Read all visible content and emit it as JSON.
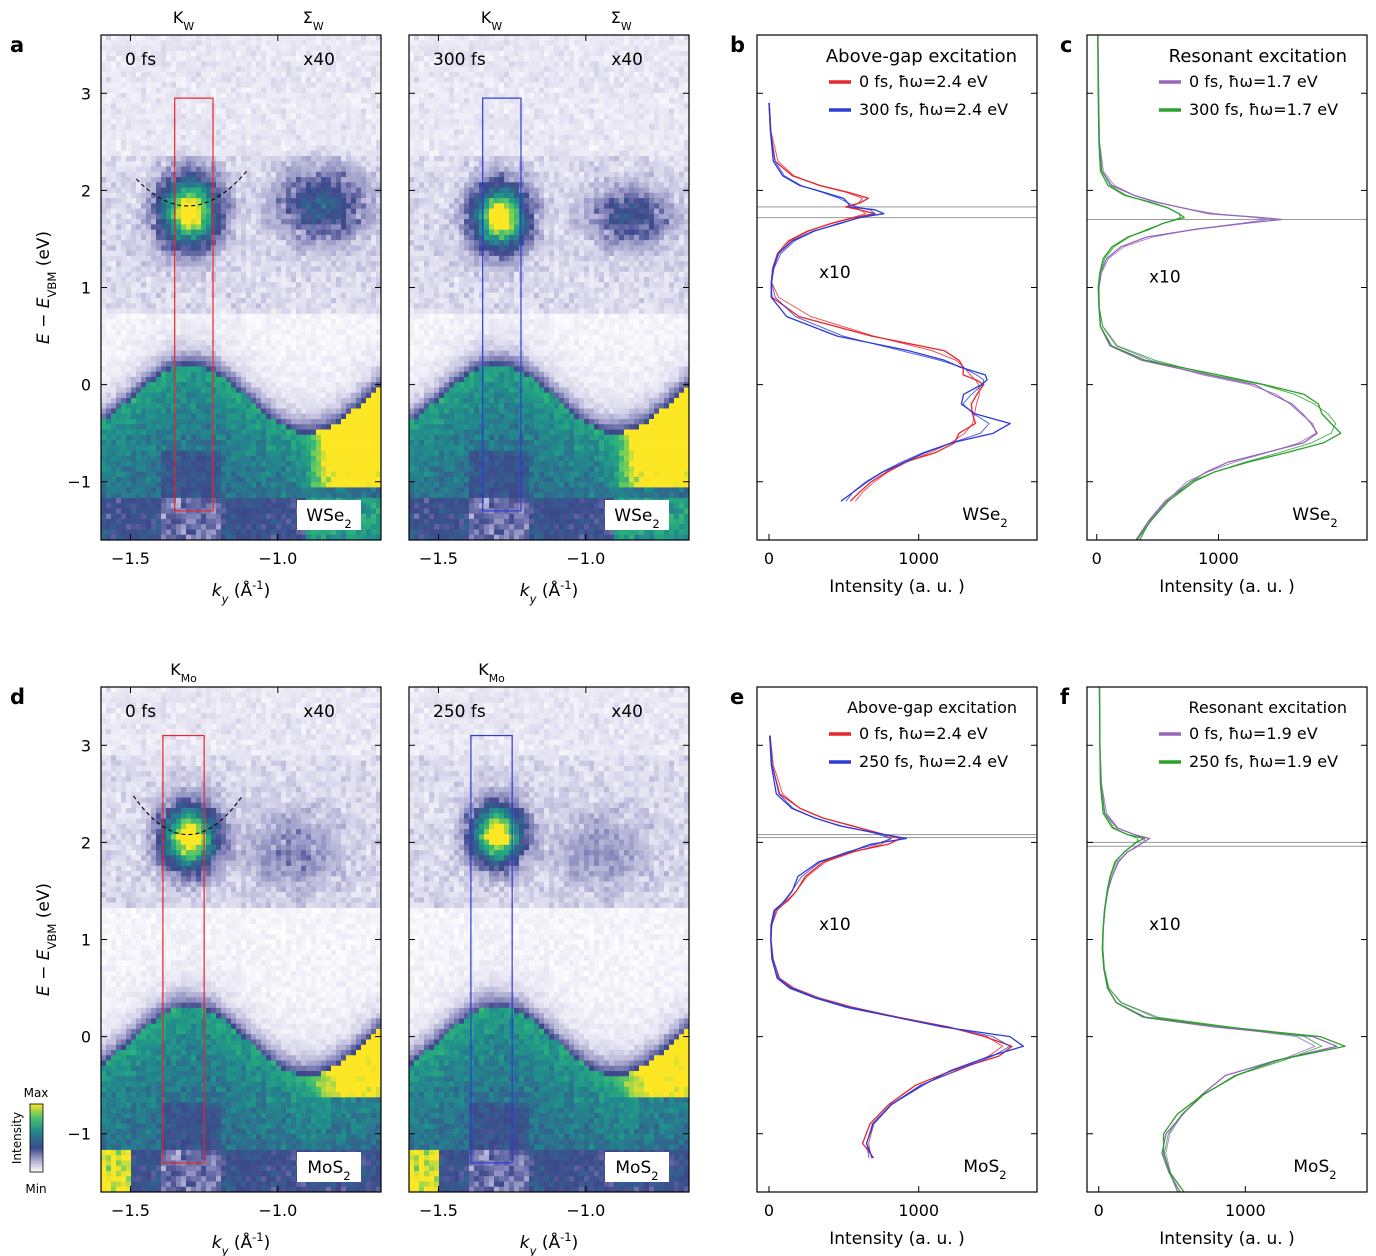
{
  "panel_letters": [
    "a",
    "b",
    "c",
    "d",
    "e",
    "f"
  ],
  "colorbar": {
    "label": "Intensity",
    "max_label": "Max",
    "min_label": "Min"
  },
  "chart_data": [
    {
      "panel": "a-left",
      "type": "heatmap",
      "material": "WSe2",
      "time_label": "0 fs",
      "scale_label": "x40",
      "top_labels": [
        {
          "base": "K",
          "sub": "W",
          "k": -1.32
        },
        {
          "base": "Σ",
          "sub": "W",
          "k": -0.88
        }
      ],
      "xlabel": "k",
      "xlabel_sub": "y",
      "xunit": "(Å",
      "xunit_sup": "-1",
      "xunit_end": ")",
      "ylabel_parts": [
        "E − E",
        "VBM",
        " (eV)"
      ],
      "xlim": [
        -1.6,
        -0.65
      ],
      "ylim": [
        -1.6,
        3.6
      ],
      "xticks": [
        -1.5,
        -1.0
      ],
      "xtick_labels": [
        "−1.5",
        "−1.0"
      ],
      "yticks": [
        -1,
        0,
        1,
        2,
        3
      ],
      "ytick_labels": [
        "−1",
        "0",
        "1",
        "2",
        "3"
      ],
      "box": {
        "k": [
          -1.35,
          -1.22
        ],
        "E": [
          -1.3,
          2.95
        ],
        "color": "#e8262b"
      },
      "parabola": {
        "k0": -1.305,
        "E0": 1.84,
        "k_range": [
          -1.48,
          -1.1
        ],
        "E_edge": 2.22
      },
      "cb_edge": 0.75,
      "features": [
        {
          "k": -1.3,
          "E": 1.78,
          "width": 0.09,
          "height": 0.32,
          "strength": 1.0
        },
        {
          "k": -0.85,
          "E": 1.85,
          "width": 0.13,
          "height": 0.33,
          "strength": 0.36
        }
      ],
      "vb": {
        "k_peak": -1.3,
        "E_top": 0.2,
        "E_low": -0.5,
        "period": 0.58
      }
    },
    {
      "panel": "a-right",
      "type": "heatmap",
      "material": "WSe2",
      "time_label": "300 fs",
      "scale_label": "x40",
      "top_labels": [
        {
          "base": "K",
          "sub": "W",
          "k": -1.32
        },
        {
          "base": "Σ",
          "sub": "W",
          "k": -0.88
        }
      ],
      "xlabel": "k",
      "xlabel_sub": "y",
      "xunit": "(Å",
      "xunit_sup": "-1",
      "xunit_end": ")",
      "xlim": [
        -1.6,
        -0.65
      ],
      "ylim": [
        -1.6,
        3.6
      ],
      "xticks": [
        -1.5,
        -1.0
      ],
      "xtick_labels": [
        "−1.5",
        "−1.0"
      ],
      "box": {
        "k": [
          -1.35,
          -1.22
        ],
        "E": [
          -1.3,
          2.95
        ],
        "color": "#2b3bdc"
      },
      "cb_edge": 0.75,
      "features": [
        {
          "k": -1.29,
          "E": 1.72,
          "width": 0.085,
          "height": 0.3,
          "strength": 1.0
        },
        {
          "k": -0.85,
          "E": 1.73,
          "width": 0.12,
          "height": 0.27,
          "strength": 0.3
        }
      ],
      "vb": {
        "k_peak": -1.3,
        "E_top": 0.2,
        "E_low": -0.5,
        "period": 0.58
      }
    },
    {
      "panel": "b",
      "type": "line",
      "material": "WSe2",
      "title": "Above-gap excitation",
      "scale_label": "x10",
      "xlabel": "Intensity (a. u. )",
      "xlim": [
        -80,
        1790
      ],
      "ylim": [
        -1.6,
        3.6
      ],
      "xticks": [
        0,
        1000
      ],
      "xtick_labels": [
        "0",
        "1000"
      ],
      "hlines": [
        1.83,
        1.72
      ],
      "series": [
        {
          "name": "0 fs, ħω=2.4 eV",
          "color": "#e8262b",
          "E": [
            2.9,
            2.6,
            2.3,
            2.15,
            2.05,
            1.98,
            1.92,
            1.87,
            1.83,
            1.8,
            1.76,
            1.72,
            1.66,
            1.58,
            1.48,
            1.35,
            1.2,
            1.05,
            0.9,
            0.7,
            0.5,
            0.35,
            0.25,
            0.18,
            0.1,
            0.05,
            0.0,
            -0.1,
            -0.2,
            -0.3,
            -0.4,
            -0.5,
            -0.6,
            -0.7,
            -0.8,
            -0.9,
            -1.0,
            -1.1,
            -1.2
          ],
          "I": [
            0,
            10,
            40,
            150,
            330,
            520,
            690,
            600,
            500,
            620,
            700,
            560,
            410,
            260,
            130,
            55,
            25,
            15,
            20,
            200,
            700,
            1200,
            1250,
            1300,
            1350,
            1380,
            1400,
            1420,
            1380,
            1360,
            1390,
            1300,
            1240,
            1080,
            900,
            790,
            700,
            630,
            560
          ]
        },
        {
          "name": "300 fs, ħω=2.4 eV",
          "color": "#2b3bdc",
          "E": [
            2.9,
            2.6,
            2.3,
            2.15,
            2.05,
            1.98,
            1.92,
            1.87,
            1.83,
            1.8,
            1.76,
            1.72,
            1.66,
            1.58,
            1.48,
            1.35,
            1.2,
            1.05,
            0.9,
            0.7,
            0.5,
            0.35,
            0.25,
            0.18,
            0.1,
            0.05,
            0.0,
            -0.1,
            -0.2,
            -0.3,
            -0.4,
            -0.5,
            -0.6,
            -0.7,
            -0.8,
            -0.9,
            -1.0,
            -1.1,
            -1.2
          ],
          "I": [
            0,
            10,
            30,
            90,
            200,
            370,
            480,
            540,
            560,
            690,
            760,
            620,
            460,
            300,
            160,
            65,
            28,
            15,
            15,
            120,
            450,
            960,
            1150,
            1300,
            1400,
            1440,
            1460,
            1350,
            1250,
            1330,
            1550,
            1450,
            1200,
            1020,
            880,
            750,
            640,
            560,
            500
          ]
        }
      ]
    },
    {
      "panel": "c",
      "type": "line",
      "material": "WSe2",
      "title": "Resonant excitation",
      "scale_label": "x10",
      "xlabel": "Intensity (a. u. )",
      "xlim": [
        -80,
        2220
      ],
      "ylim": [
        -1.6,
        3.6
      ],
      "xticks": [
        0,
        1000
      ],
      "xtick_labels": [
        "0",
        "1000"
      ],
      "hlines": [
        1.7
      ],
      "series": [
        {
          "name": "0 fs, ħω=1.7 eV",
          "color": "#9467bd",
          "E": [
            3.6,
            3.0,
            2.5,
            2.2,
            2.05,
            1.95,
            1.88,
            1.82,
            1.76,
            1.72,
            1.7,
            1.66,
            1.6,
            1.52,
            1.42,
            1.3,
            1.15,
            1.0,
            0.8,
            0.6,
            0.4,
            0.25,
            0.1,
            0.0,
            -0.1,
            -0.2,
            -0.3,
            -0.4,
            -0.5,
            -0.6,
            -0.7,
            -0.8,
            -0.9,
            -1.0,
            -1.2,
            -1.4,
            -1.6
          ],
          "I": [
            10,
            15,
            20,
            40,
            120,
            300,
            500,
            700,
            900,
            1400,
            1500,
            1200,
            800,
            420,
            200,
            80,
            30,
            15,
            20,
            30,
            110,
            380,
            900,
            1300,
            1500,
            1600,
            1650,
            1800,
            1850,
            1700,
            1400,
            1100,
            900,
            750,
            560,
            430,
            330
          ]
        },
        {
          "name": "300 fs, ħω=1.7 eV",
          "color": "#2ca02c",
          "E": [
            3.6,
            3.0,
            2.5,
            2.2,
            2.05,
            1.95,
            1.88,
            1.82,
            1.76,
            1.72,
            1.7,
            1.66,
            1.6,
            1.52,
            1.42,
            1.3,
            1.15,
            1.0,
            0.8,
            0.6,
            0.4,
            0.25,
            0.1,
            0.0,
            -0.1,
            -0.2,
            -0.3,
            -0.4,
            -0.5,
            -0.6,
            -0.7,
            -0.8,
            -0.9,
            -1.0,
            -1.2,
            -1.4,
            -1.6
          ],
          "I": [
            8,
            12,
            18,
            30,
            90,
            230,
            420,
            600,
            700,
            700,
            650,
            560,
            420,
            260,
            130,
            55,
            25,
            12,
            18,
            30,
            120,
            410,
            980,
            1400,
            1650,
            1800,
            1900,
            2000,
            1950,
            1800,
            1500,
            1200,
            950,
            780,
            570,
            440,
            320
          ]
        }
      ]
    },
    {
      "panel": "d-left",
      "type": "heatmap",
      "material": "MoS2",
      "time_label": "0 fs",
      "scale_label": "x40",
      "top_labels": [
        {
          "base": "K",
          "sub": "Mo",
          "k": -1.32
        }
      ],
      "xlabel": "k",
      "xlabel_sub": "y",
      "xunit": "(Å",
      "xunit_sup": "-1",
      "xunit_end": ")",
      "ylabel_parts": [
        "E − E",
        "VBM",
        " (eV)"
      ],
      "xlim": [
        -1.6,
        -0.65
      ],
      "ylim": [
        -1.6,
        3.6
      ],
      "xticks": [
        -1.5,
        -1.0
      ],
      "xtick_labels": [
        "−1.5",
        "−1.0"
      ],
      "yticks": [
        -1,
        0,
        1,
        2,
        3
      ],
      "ytick_labels": [
        "−1",
        "0",
        "1",
        "2",
        "3"
      ],
      "box": {
        "k": [
          -1.39,
          -1.25
        ],
        "E": [
          -1.3,
          3.1
        ],
        "color": "#e8262b"
      },
      "parabola": {
        "k0": -1.305,
        "E0": 2.08,
        "k_range": [
          -1.49,
          -1.12
        ],
        "E_edge": 2.48
      },
      "cb_edge": 1.3,
      "features": [
        {
          "k": -1.3,
          "E": 2.05,
          "width": 0.085,
          "height": 0.3,
          "strength": 1.0
        },
        {
          "k": -0.95,
          "E": 1.9,
          "width": 0.16,
          "height": 0.4,
          "strength": 0.12
        }
      ],
      "vb": {
        "k_peak": -1.3,
        "E_top": 0.3,
        "E_low": -0.4,
        "period": 0.58
      }
    },
    {
      "panel": "d-right",
      "type": "heatmap",
      "material": "MoS2",
      "time_label": "250 fs",
      "scale_label": "x40",
      "top_labels": [
        {
          "base": "K",
          "sub": "Mo",
          "k": -1.32
        }
      ],
      "xlabel": "k",
      "xlabel_sub": "y",
      "xunit": "(Å",
      "xunit_sup": "-1",
      "xunit_end": ")",
      "xlim": [
        -1.6,
        -0.65
      ],
      "ylim": [
        -1.6,
        3.6
      ],
      "xticks": [
        -1.5,
        -1.0
      ],
      "xtick_labels": [
        "−1.5",
        "−1.0"
      ],
      "box": {
        "k": [
          -1.39,
          -1.25
        ],
        "E": [
          -1.3,
          3.1
        ],
        "color": "#2b3bdc"
      },
      "cb_edge": 1.3,
      "features": [
        {
          "k": -1.3,
          "E": 2.08,
          "width": 0.08,
          "height": 0.28,
          "strength": 1.0
        },
        {
          "k": -0.95,
          "E": 1.9,
          "width": 0.16,
          "height": 0.4,
          "strength": 0.1
        }
      ],
      "vb": {
        "k_peak": -1.3,
        "E_top": 0.3,
        "E_low": -0.4,
        "period": 0.58
      }
    },
    {
      "panel": "e",
      "type": "line",
      "material": "MoS2",
      "title": "Above-gap excitation",
      "scale_label": "x10",
      "xlabel": "Intensity (a. u. )",
      "xlim": [
        -80,
        1790
      ],
      "ylim": [
        -1.6,
        3.6
      ],
      "xticks": [
        0,
        1000
      ],
      "xtick_labels": [
        "0",
        "1000"
      ],
      "hlines": [
        2.08,
        2.05
      ],
      "series": [
        {
          "name": "0 fs, ħω=2.4 eV",
          "color": "#e8262b",
          "E": [
            3.1,
            2.8,
            2.5,
            2.35,
            2.25,
            2.17,
            2.1,
            2.04,
            1.98,
            1.9,
            1.8,
            1.65,
            1.5,
            1.4,
            1.3,
            1.15,
            1.0,
            0.8,
            0.6,
            0.5,
            0.4,
            0.3,
            0.2,
            0.1,
            0.0,
            -0.1,
            -0.2,
            -0.35,
            -0.5,
            -0.7,
            -0.9,
            -1.1,
            -1.25
          ],
          "I": [
            5,
            20,
            70,
            200,
            350,
            550,
            750,
            870,
            780,
            560,
            360,
            240,
            180,
            130,
            40,
            15,
            12,
            20,
            60,
            150,
            320,
            560,
            850,
            1200,
            1500,
            1620,
            1500,
            1250,
            1000,
            800,
            680,
            640,
            700
          ]
        },
        {
          "name": "250 fs, ħω=2.4 eV",
          "color": "#2b3bdc",
          "E": [
            3.1,
            2.8,
            2.5,
            2.35,
            2.25,
            2.17,
            2.1,
            2.04,
            1.98,
            1.9,
            1.8,
            1.65,
            1.5,
            1.4,
            1.3,
            1.15,
            1.0,
            0.8,
            0.6,
            0.5,
            0.4,
            0.3,
            0.2,
            0.1,
            0.0,
            -0.1,
            -0.2,
            -0.35,
            -0.5,
            -0.7,
            -0.9,
            -1.1,
            -1.25
          ],
          "I": [
            5,
            15,
            50,
            150,
            300,
            480,
            680,
            940,
            700,
            520,
            330,
            200,
            150,
            110,
            35,
            14,
            12,
            20,
            55,
            140,
            300,
            540,
            830,
            1180,
            1560,
            1680,
            1520,
            1260,
            1000,
            790,
            670,
            630,
            680
          ]
        }
      ]
    },
    {
      "panel": "f",
      "type": "line",
      "material": "MoS2",
      "title": "Resonant excitation",
      "scale_label": "x10",
      "xlabel": "Intensity (a. u. )",
      "xlim": [
        -80,
        1830
      ],
      "ylim": [
        -1.6,
        3.6
      ],
      "xticks": [
        0,
        1000
      ],
      "xtick_labels": [
        "0",
        "1000"
      ],
      "hlines": [
        2.0,
        1.96
      ],
      "series": [
        {
          "name": "0 fs, ħω=1.9 eV",
          "color": "#9467bd",
          "E": [
            3.6,
            3.0,
            2.6,
            2.3,
            2.15,
            2.08,
            2.04,
            2.0,
            1.96,
            1.9,
            1.8,
            1.65,
            1.5,
            1.3,
            1.1,
            0.9,
            0.7,
            0.5,
            0.35,
            0.2,
            0.1,
            0.0,
            -0.1,
            -0.25,
            -0.4,
            -0.6,
            -0.8,
            -1.0,
            -1.2,
            -1.4,
            -1.6
          ],
          "I": [
            5,
            8,
            15,
            40,
            120,
            240,
            360,
            300,
            260,
            200,
            130,
            90,
            60,
            40,
            30,
            25,
            35,
            60,
            120,
            300,
            800,
            1500,
            1600,
            1200,
            900,
            700,
            560,
            470,
            440,
            480,
            560
          ]
        },
        {
          "name": "250 fs, ħω=1.9 eV",
          "color": "#2ca02c",
          "E": [
            3.6,
            3.0,
            2.6,
            2.3,
            2.15,
            2.08,
            2.04,
            2.0,
            1.96,
            1.9,
            1.8,
            1.65,
            1.5,
            1.3,
            1.1,
            0.9,
            0.7,
            0.5,
            0.35,
            0.2,
            0.1,
            0.0,
            -0.1,
            -0.25,
            -0.4,
            -0.6,
            -0.8,
            -1.0,
            -1.2,
            -1.4,
            -1.6
          ],
          "I": [
            5,
            8,
            12,
            30,
            90,
            200,
            300,
            260,
            230,
            170,
            110,
            80,
            55,
            40,
            30,
            25,
            35,
            60,
            120,
            320,
            850,
            1560,
            1650,
            1220,
            910,
            700,
            550,
            460,
            430,
            470,
            560
          ]
        }
      ]
    }
  ]
}
